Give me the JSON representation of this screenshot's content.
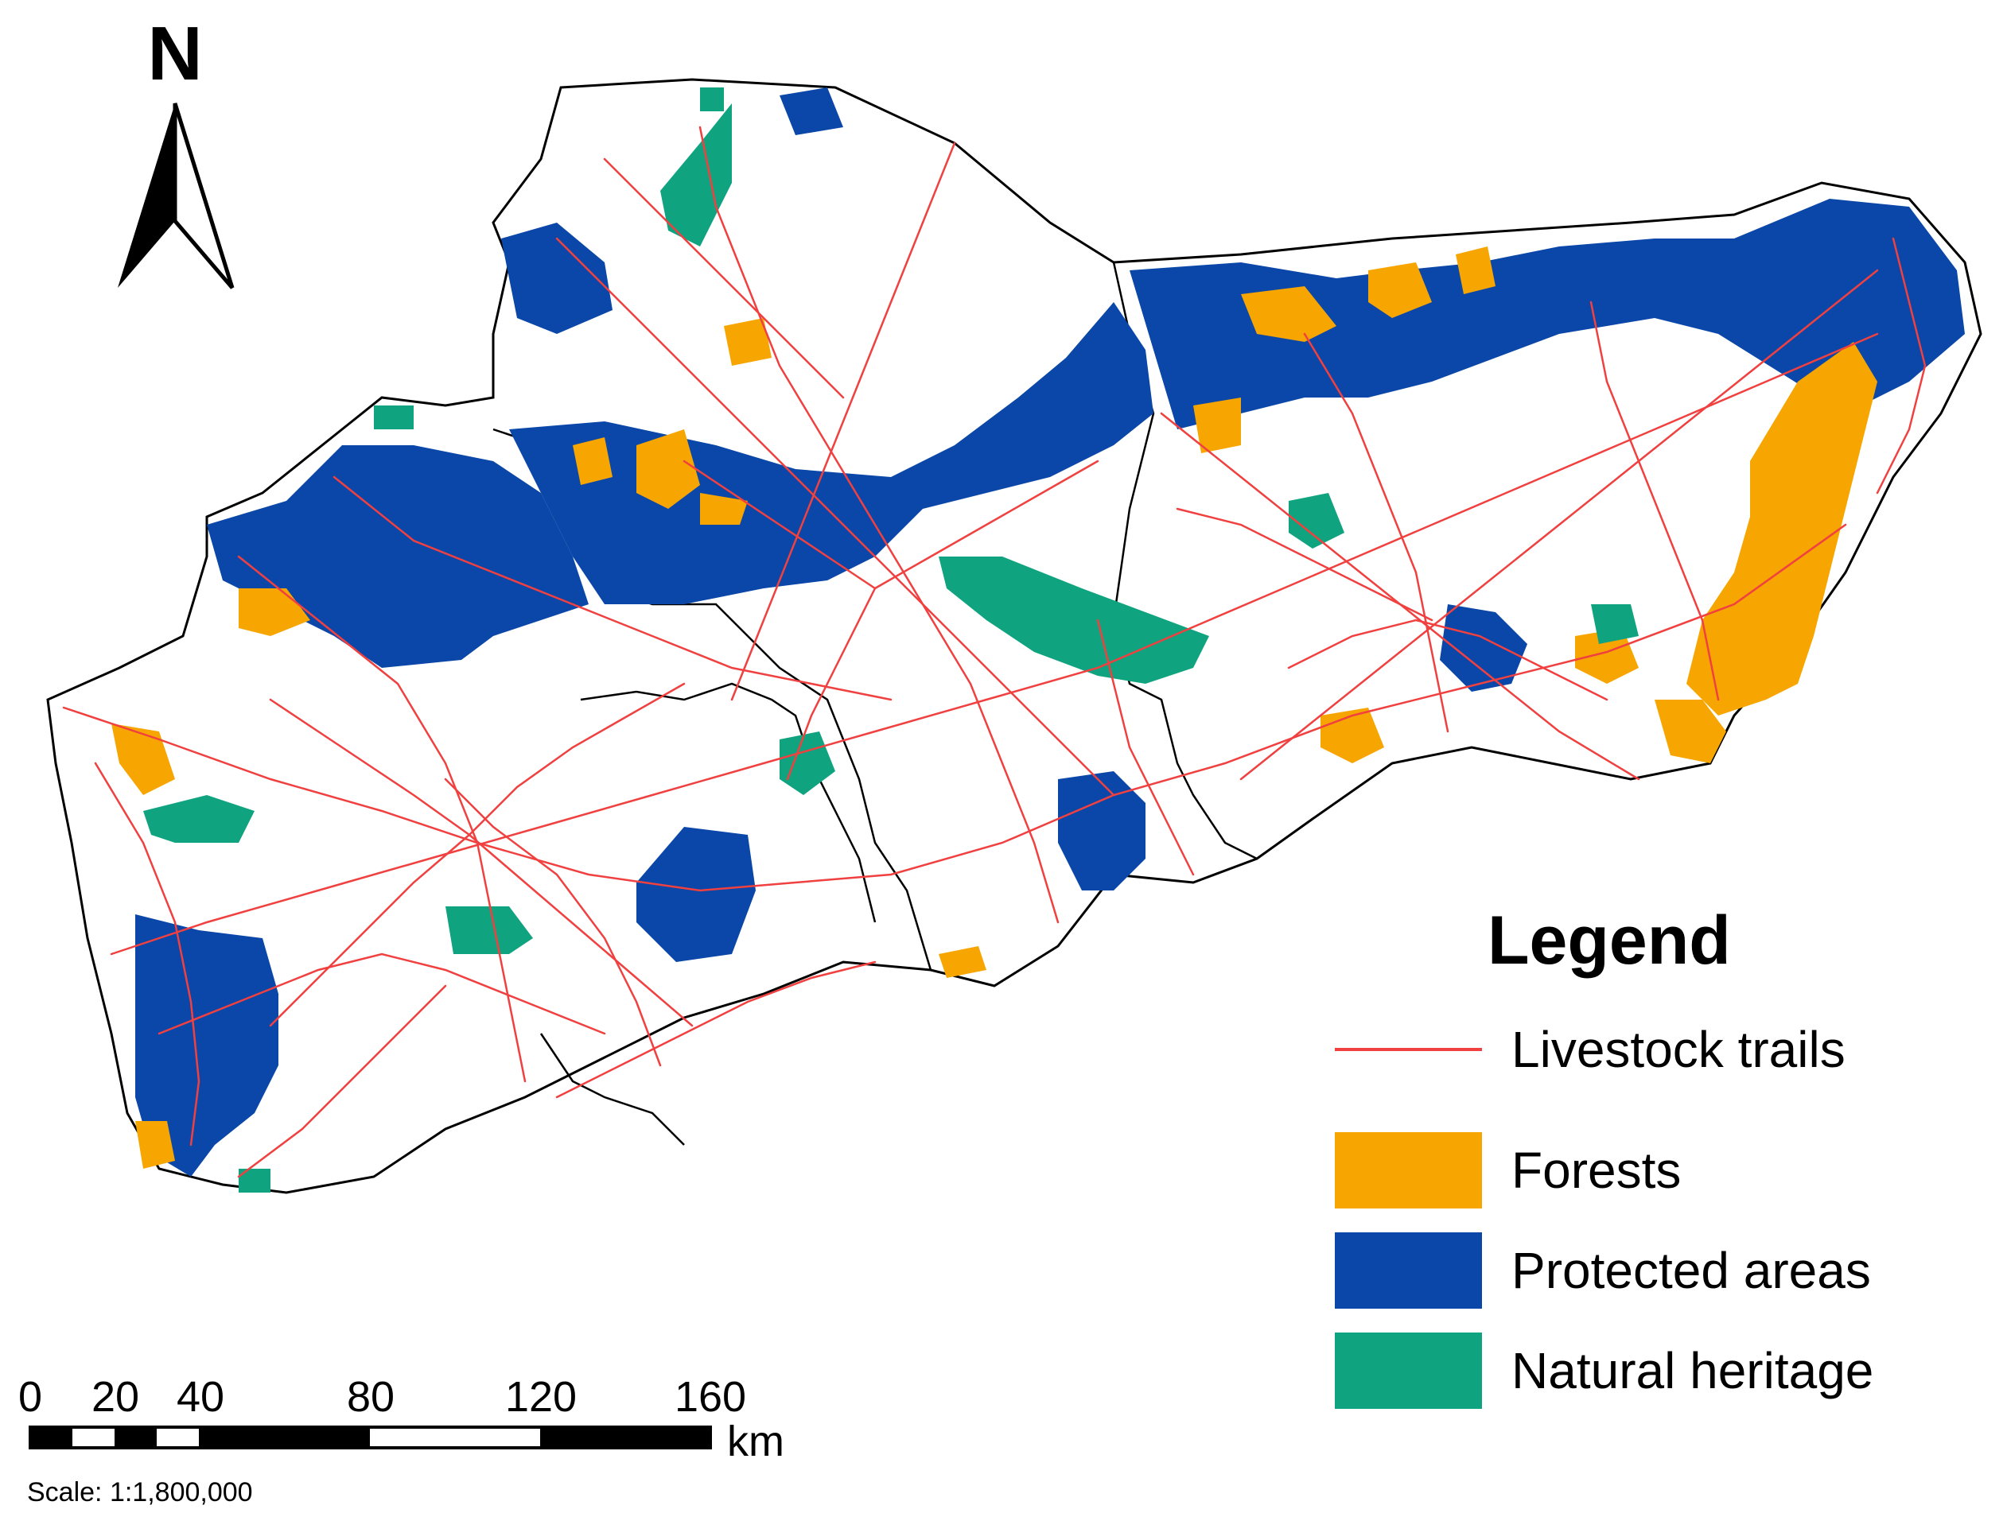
{
  "north_arrow": {
    "label": "N",
    "icon": "north-arrow-icon"
  },
  "legend": {
    "title": "Legend",
    "items": [
      {
        "label": "Livestock trails",
        "symbol": "line",
        "color": "#f04040"
      },
      {
        "label": "Forests",
        "symbol": "fill",
        "color": "#f7a500"
      },
      {
        "label": "Protected areas",
        "symbol": "fill",
        "color": "#0a47a8"
      },
      {
        "label": "Natural heritage",
        "symbol": "fill",
        "color": "#10a37f"
      }
    ]
  },
  "scale_bar": {
    "tick_labels": [
      "0",
      "20",
      "40",
      "80",
      "120",
      "160"
    ],
    "unit": "km",
    "scale_text": "Scale: 1:1,800,000"
  },
  "colors": {
    "trails": "#f04040",
    "forests": "#f7a500",
    "protected": "#0a47a8",
    "heritage": "#10a37f",
    "border": "#000000",
    "land": "#ffffff"
  }
}
